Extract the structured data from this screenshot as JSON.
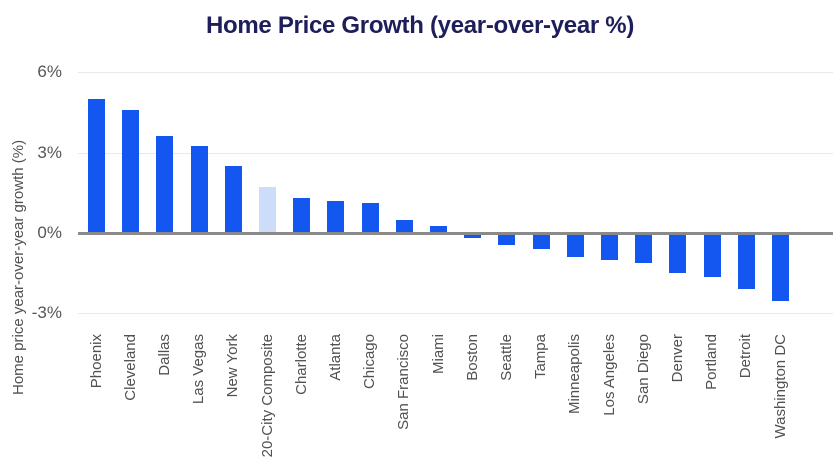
{
  "chart_data": {
    "type": "bar",
    "title": "Home Price Growth (year-over-year %)",
    "xlabel": "",
    "ylabel": "Home price year-over-year growth (%)",
    "categories": [
      "Phoenix",
      "Cleveland",
      "Dallas",
      "Las Vegas",
      "New York",
      "20-City Composite",
      "Charlotte",
      "Atlanta",
      "Chicago",
      "San Francisco",
      "Miami",
      "Boston",
      "Seattle",
      "Tampa",
      "Minneapolis",
      "Los Angeles",
      "San Diego",
      "Denver",
      "Portland",
      "Detroit",
      "Washington DC"
    ],
    "values": [
      5.0,
      4.6,
      3.6,
      3.25,
      2.5,
      1.7,
      1.3,
      1.2,
      1.1,
      0.5,
      0.25,
      -0.2,
      -0.45,
      -0.6,
      -0.9,
      -1.0,
      -1.1,
      -1.5,
      -1.65,
      -2.1,
      -2.55
    ],
    "highlight_category": "20-City Composite",
    "yticks": [
      {
        "value": 6,
        "label": "6%"
      },
      {
        "value": 3,
        "label": "3%"
      },
      {
        "value": 0,
        "label": "0%"
      },
      {
        "value": -3,
        "label": "-3%"
      }
    ],
    "ylim": [
      -3.5,
      6.8
    ],
    "grid": "horizontal",
    "legend": "none",
    "colors": {
      "bar": "#1457F0",
      "highlight_bar": "#CDDCF8",
      "baseline": "#8A8A8A",
      "gridline": "#E9E9E9",
      "title": "#1E1E5A",
      "tick_label": "#55565A",
      "axis_label": "#515151"
    }
  }
}
